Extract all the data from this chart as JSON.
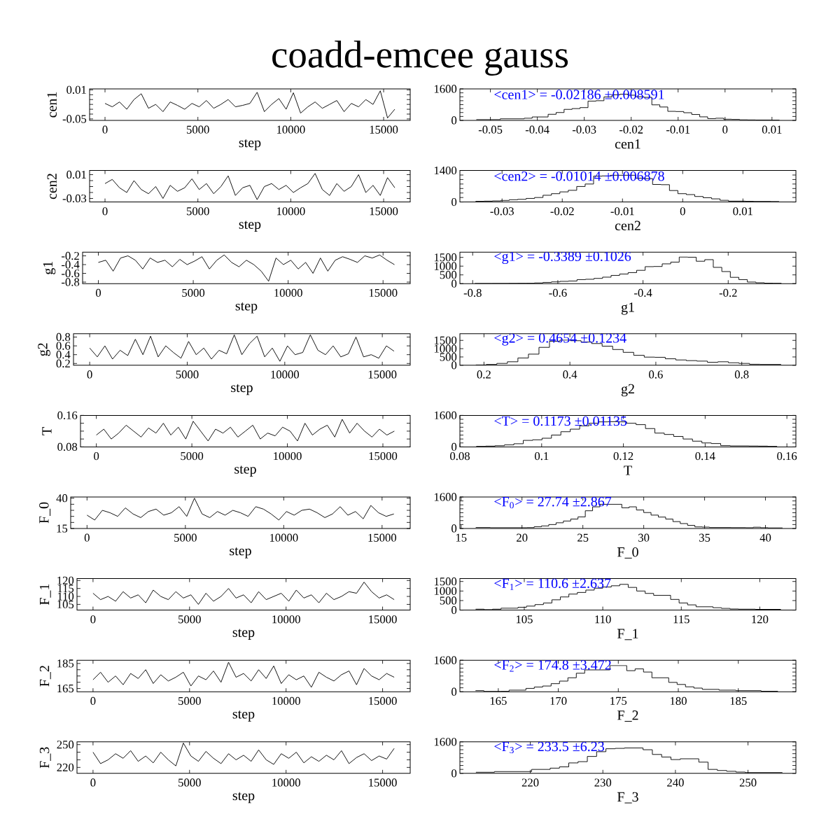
{
  "chart_data": [
    {
      "type": "line",
      "title": "coadd-emcee gauss",
      "xlabel": "step",
      "ylabel": "cen1",
      "color": "#000000",
      "xlim": [
        -830,
        16430
      ],
      "ylim": [
        -0.053,
        0.012
      ],
      "xticks": [
        0,
        5000,
        10000,
        15000
      ],
      "yticks": [
        -0.05,
        {
          "value": -0.04,
          "label": null
        },
        {
          "value": -0.03,
          "label": null
        },
        {
          "value": -0.02,
          "label": null
        },
        {
          "value": -0.01,
          "label": null
        },
        {
          "value": 0,
          "label": null
        },
        0.01
      ],
      "x": [
        0,
        390,
        780,
        1170,
        1560,
        1950,
        2340,
        2730,
        3120,
        3510,
        3900,
        4290,
        4680,
        5070,
        5460,
        5850,
        6240,
        6630,
        7020,
        7410,
        7800,
        8190,
        8580,
        8970,
        9360,
        9750,
        10140,
        10530,
        10920,
        11310,
        11700,
        12090,
        12480,
        12870,
        13260,
        13650,
        14040,
        14430,
        14820,
        15210,
        15600
      ],
      "values": [
        -0.018,
        -0.025,
        -0.015,
        -0.03,
        -0.01,
        0.002,
        -0.028,
        -0.02,
        -0.035,
        -0.015,
        -0.022,
        -0.03,
        -0.018,
        -0.025,
        -0.012,
        -0.028,
        -0.02,
        -0.01,
        -0.025,
        -0.022,
        -0.018,
        0.005,
        -0.035,
        -0.02,
        -0.008,
        -0.03,
        0.004,
        -0.038,
        -0.025,
        -0.015,
        -0.028,
        -0.02,
        -0.012,
        -0.035,
        -0.018,
        -0.025,
        -0.01,
        -0.02,
        0.008,
        -0.048,
        -0.03
      ]
    },
    {
      "type": "histogram",
      "xlabel": "cen1",
      "color": "#000000",
      "xlim": [
        -0.0565,
        0.0151
      ],
      "ylim": [
        0,
        1600
      ],
      "xticks": [
        -0.05,
        -0.04,
        -0.03,
        -0.02,
        -0.01,
        0,
        0.01
      ],
      "yticks": [
        0,
        {
          "value": 200,
          "label": null
        },
        {
          "value": 400,
          "label": null
        },
        {
          "value": 600,
          "label": null
        },
        {
          "value": 800,
          "label": null
        },
        {
          "value": 1000,
          "label": null
        },
        {
          "value": 1200,
          "label": null
        },
        {
          "value": 1400,
          "label": null
        },
        1600
      ],
      "annotations": [
        "<cen1> = -0.02186 ±0.008591"
      ],
      "bins": [
        -0.053,
        -0.0513,
        -0.0496,
        -0.0479,
        -0.0462,
        -0.0445,
        -0.0428,
        -0.0411,
        -0.0394,
        -0.0377,
        -0.036,
        -0.0343,
        -0.0326,
        -0.0309,
        -0.0292,
        -0.0275,
        -0.0258,
        -0.0241,
        -0.0224,
        -0.0207,
        -0.019,
        -0.0173,
        -0.0156,
        -0.0139,
        -0.0122,
        -0.0105,
        -0.0088,
        -0.0071,
        -0.0054,
        -0.0037,
        -0.002,
        -0.0003,
        0.0014,
        0.0031,
        0.0048,
        0.0065,
        0.0082,
        0.0099,
        0.0116
      ],
      "values": [
        40,
        40,
        40,
        80,
        80,
        80,
        110,
        175,
        175,
        310,
        400,
        560,
        600,
        650,
        980,
        1000,
        1190,
        1300,
        1330,
        1280,
        1200,
        1170,
        790,
        680,
        460,
        450,
        390,
        300,
        180,
        90,
        110,
        60,
        50,
        30,
        25,
        20,
        20,
        15
      ]
    },
    {
      "type": "line",
      "xlabel": "step",
      "ylabel": "cen2",
      "color": "#000000",
      "xlim": [
        -830,
        16430
      ],
      "ylim": [
        -0.036,
        0.017
      ],
      "xticks": [
        0,
        5000,
        10000,
        15000
      ],
      "yticks": [
        -0.03,
        {
          "value": -0.02,
          "label": null
        },
        {
          "value": -0.01,
          "label": null
        },
        {
          "value": 0,
          "label": null
        },
        0.01
      ],
      "x": [
        0,
        390,
        780,
        1170,
        1560,
        1950,
        2340,
        2730,
        3120,
        3510,
        3900,
        4290,
        4680,
        5070,
        5460,
        5850,
        6240,
        6630,
        7020,
        7410,
        7800,
        8190,
        8580,
        8970,
        9360,
        9750,
        10140,
        10530,
        10920,
        11310,
        11700,
        12090,
        12480,
        12870,
        13260,
        13650,
        14040,
        14430,
        14820,
        15210,
        15600
      ],
      "values": [
        -0.005,
        0.002,
        -0.012,
        -0.02,
        0,
        -0.015,
        -0.022,
        -0.01,
        -0.03,
        -0.008,
        -0.018,
        -0.012,
        0.003,
        -0.015,
        -0.005,
        -0.022,
        -0.01,
        0.008,
        -0.025,
        -0.012,
        -0.008,
        -0.032,
        -0.01,
        -0.005,
        -0.015,
        -0.008,
        -0.02,
        -0.012,
        -0.005,
        0.012,
        -0.015,
        -0.025,
        -0.005,
        -0.018,
        -0.01,
        0.01,
        -0.02,
        -0.008,
        -0.025,
        0.005,
        -0.012
      ]
    },
    {
      "type": "histogram",
      "xlabel": "cen2",
      "color": "#000000",
      "xlim": [
        -0.037,
        0.0188
      ],
      "ylim": [
        0,
        1400
      ],
      "xticks": [
        -0.03,
        -0.02,
        -0.01,
        0,
        0.01
      ],
      "yticks": [
        0,
        {
          "value": 200,
          "label": null
        },
        {
          "value": 400,
          "label": null
        },
        {
          "value": 600,
          "label": null
        },
        {
          "value": 800,
          "label": null
        },
        {
          "value": 1000,
          "label": null
        },
        {
          "value": 1200,
          "label": null
        },
        1400
      ],
      "annotations": [
        "<cen2> = -0.01014 ±0.006878"
      ],
      "bins": [
        -0.0344,
        -0.033,
        -0.0316,
        -0.0302,
        -0.0288,
        -0.0274,
        -0.026,
        -0.0246,
        -0.0232,
        -0.0218,
        -0.0204,
        -0.019,
        -0.0176,
        -0.0162,
        -0.0148,
        -0.0134,
        -0.012,
        -0.0106,
        -0.0092,
        -0.0078,
        -0.0064,
        -0.005,
        -0.0036,
        -0.0022,
        -0.0008,
        0.0006,
        0.002,
        0.0034,
        0.0048,
        0.0062,
        0.0076,
        0.009,
        0.0104,
        0.0118,
        0.0132,
        0.0146,
        0.016
      ],
      "values": [
        30,
        40,
        50,
        70,
        100,
        120,
        160,
        200,
        300,
        370,
        450,
        520,
        690,
        800,
        1150,
        1160,
        1190,
        1190,
        1190,
        1060,
        1040,
        780,
        770,
        510,
        370,
        330,
        245,
        190,
        140,
        75,
        40,
        40,
        30,
        25,
        25,
        20
      ]
    },
    {
      "type": "line",
      "xlabel": "step",
      "ylabel": "g1",
      "color": "#000000",
      "xlim": [
        -830,
        16430
      ],
      "ylim": [
        -0.835,
        -0.115
      ],
      "xticks": [
        0,
        5000,
        10000,
        15000
      ],
      "yticks": [
        -0.8,
        -0.6,
        -0.4,
        -0.2
      ],
      "x": [
        0,
        390,
        780,
        1170,
        1560,
        1950,
        2340,
        2730,
        3120,
        3510,
        3900,
        4290,
        4680,
        5070,
        5460,
        5850,
        6240,
        6630,
        7020,
        7410,
        7800,
        8190,
        8580,
        8970,
        9360,
        9750,
        10140,
        10530,
        10920,
        11310,
        11700,
        12090,
        12480,
        12870,
        13260,
        13650,
        14040,
        14430,
        14820,
        15210,
        15600
      ],
      "values": [
        -0.35,
        -0.3,
        -0.55,
        -0.25,
        -0.2,
        -0.3,
        -0.5,
        -0.25,
        -0.35,
        -0.3,
        -0.45,
        -0.28,
        -0.4,
        -0.32,
        -0.22,
        -0.5,
        -0.3,
        -0.18,
        -0.35,
        -0.45,
        -0.3,
        -0.4,
        -0.55,
        -0.78,
        -0.25,
        -0.4,
        -0.3,
        -0.5,
        -0.35,
        -0.6,
        -0.25,
        -0.55,
        -0.3,
        -0.22,
        -0.28,
        -0.35,
        -0.2,
        -0.25,
        -0.18,
        -0.3,
        -0.4
      ]
    },
    {
      "type": "histogram",
      "xlabel": "g1",
      "color": "#000000",
      "xlim": [
        -0.83,
        -0.041
      ],
      "ylim": [
        0,
        1800
      ],
      "xticks": [
        -0.8,
        -0.6,
        -0.4,
        -0.2
      ],
      "yticks": [
        0,
        500,
        1000,
        1500
      ],
      "annotations": [
        "<g1> = -0.3389 ±0.1026"
      ],
      "bins": [
        -0.795,
        -0.775,
        -0.755,
        -0.735,
        -0.715,
        -0.695,
        -0.675,
        -0.655,
        -0.635,
        -0.615,
        -0.595,
        -0.575,
        -0.555,
        -0.535,
        -0.515,
        -0.495,
        -0.475,
        -0.455,
        -0.435,
        -0.415,
        -0.395,
        -0.375,
        -0.355,
        -0.335,
        -0.315,
        -0.295,
        -0.275,
        -0.255,
        -0.235,
        -0.215,
        -0.195,
        -0.175,
        -0.155,
        -0.135,
        -0.115,
        -0.095,
        -0.075
      ],
      "values": [
        10,
        10,
        12,
        12,
        15,
        18,
        20,
        40,
        70,
        100,
        130,
        150,
        230,
        250,
        300,
        370,
        470,
        550,
        630,
        760,
        970,
        980,
        1130,
        1230,
        1520,
        1510,
        1280,
        1370,
        930,
        690,
        360,
        230,
        90,
        50,
        25,
        20
      ]
    },
    {
      "type": "line",
      "xlabel": "step",
      "ylabel": "g2",
      "color": "#000000",
      "xlim": [
        -830,
        16430
      ],
      "ylim": [
        0.16,
        0.875
      ],
      "xticks": [
        0,
        5000,
        10000,
        15000
      ],
      "yticks": [
        0.2,
        0.4,
        0.6,
        0.8
      ],
      "x": [
        0,
        390,
        780,
        1170,
        1560,
        1950,
        2340,
        2730,
        3120,
        3510,
        3900,
        4290,
        4680,
        5070,
        5460,
        5850,
        6240,
        6630,
        7020,
        7410,
        7800,
        8190,
        8580,
        8970,
        9360,
        9750,
        10140,
        10530,
        10920,
        11310,
        11700,
        12090,
        12480,
        12870,
        13260,
        13650,
        14040,
        14430,
        14820,
        15210,
        15600
      ],
      "values": [
        0.55,
        0.35,
        0.6,
        0.3,
        0.5,
        0.38,
        0.75,
        0.4,
        0.82,
        0.35,
        0.6,
        0.45,
        0.32,
        0.7,
        0.4,
        0.55,
        0.3,
        0.5,
        0.42,
        0.85,
        0.4,
        0.65,
        0.82,
        0.35,
        0.55,
        0.25,
        0.6,
        0.4,
        0.45,
        0.85,
        0.5,
        0.4,
        0.6,
        0.35,
        0.42,
        0.8,
        0.35,
        0.4,
        0.32,
        0.6,
        0.48
      ]
    },
    {
      "type": "histogram",
      "xlabel": "g2",
      "color": "#000000",
      "xlim": [
        0.144,
        0.926
      ],
      "ylim": [
        0,
        1900
      ],
      "xticks": [
        0.2,
        0.4,
        0.6,
        0.8
      ],
      "yticks": [
        0,
        500,
        1000,
        1500
      ],
      "annotations": [
        "<g2> = 0.4654 ±0.1234"
      ],
      "bins": [
        0.181,
        0.2055,
        0.23,
        0.2545,
        0.279,
        0.3035,
        0.328,
        0.3525,
        0.377,
        0.4015,
        0.426,
        0.4505,
        0.475,
        0.4995,
        0.524,
        0.5485,
        0.573,
        0.5975,
        0.622,
        0.6465,
        0.671,
        0.6955,
        0.72,
        0.7445,
        0.769,
        0.7935,
        0.818,
        0.8425,
        0.867,
        0.8915
      ],
      "values": [
        20,
        50,
        110,
        210,
        440,
        670,
        1080,
        1450,
        1520,
        1480,
        1400,
        1310,
        1150,
        950,
        780,
        600,
        490,
        480,
        390,
        320,
        280,
        250,
        180,
        210,
        150,
        110,
        60,
        50,
        50
      ]
    },
    {
      "type": "line",
      "xlabel": "step",
      "ylabel": "T",
      "color": "#000000",
      "xlim": [
        -830,
        16430
      ],
      "ylim": [
        0.08,
        0.16
      ],
      "xticks": [
        0,
        5000,
        10000,
        15000
      ],
      "yticks": [
        0.08,
        {
          "value": 0.1,
          "label": null
        },
        {
          "value": 0.12,
          "label": null
        },
        {
          "value": 0.14,
          "label": null
        },
        0.16
      ],
      "x": [
        0,
        390,
        780,
        1170,
        1560,
        1950,
        2340,
        2730,
        3120,
        3510,
        3900,
        4290,
        4680,
        5070,
        5460,
        5850,
        6240,
        6630,
        7020,
        7410,
        7800,
        8190,
        8580,
        8970,
        9360,
        9750,
        10140,
        10530,
        10920,
        11310,
        11700,
        12090,
        12480,
        12870,
        13260,
        13650,
        14040,
        14430,
        14820,
        15210,
        15600
      ],
      "values": [
        0.11,
        0.125,
        0.1,
        0.115,
        0.135,
        0.12,
        0.105,
        0.128,
        0.115,
        0.14,
        0.11,
        0.13,
        0.1,
        0.145,
        0.12,
        0.095,
        0.125,
        0.115,
        0.13,
        0.105,
        0.12,
        0.135,
        0.1,
        0.115,
        0.108,
        0.13,
        0.12,
        0.095,
        0.14,
        0.11,
        0.125,
        0.135,
        0.105,
        0.15,
        0.115,
        0.14,
        0.12,
        0.105,
        0.125,
        0.11,
        0.12
      ]
    },
    {
      "type": "histogram",
      "xlabel": "T",
      "color": "#000000",
      "xlim": [
        0.08,
        0.1622
      ],
      "ylim": [
        0,
        1600
      ],
      "xticks": [
        0.08,
        0.1,
        0.12,
        0.14,
        0.16
      ],
      "yticks": [
        0,
        {
          "value": 200,
          "label": null
        },
        {
          "value": 400,
          "label": null
        },
        {
          "value": 600,
          "label": null
        },
        {
          "value": 800,
          "label": null
        },
        {
          "value": 1000,
          "label": null
        },
        {
          "value": 1200,
          "label": null
        },
        {
          "value": 1400,
          "label": null
        },
        1600
      ],
      "annotations": [
        "<T> = 0.1173 ±0.01135"
      ],
      "bins": [
        0.084,
        0.0863,
        0.0886,
        0.0909,
        0.0932,
        0.0955,
        0.0978,
        0.1001,
        0.1024,
        0.1047,
        0.107,
        0.1093,
        0.1116,
        0.1139,
        0.1162,
        0.1185,
        0.1208,
        0.1231,
        0.1254,
        0.1277,
        0.13,
        0.1323,
        0.1346,
        0.1369,
        0.1392,
        0.1415,
        0.1438,
        0.1461,
        0.1484,
        0.1507,
        0.153,
        0.1553,
        0.1576
      ],
      "values": [
        25,
        40,
        60,
        100,
        160,
        330,
        360,
        440,
        600,
        770,
        900,
        1070,
        1200,
        1270,
        1280,
        1270,
        1200,
        1130,
        930,
        700,
        630,
        530,
        400,
        290,
        200,
        170,
        65,
        50,
        50,
        45,
        40,
        25
      ]
    },
    {
      "type": "line",
      "xlabel": "step",
      "ylabel": "F_0",
      "color": "#000000",
      "xlim": [
        -830,
        16430
      ],
      "ylim": [
        15,
        41
      ],
      "xticks": [
        0,
        5000,
        10000,
        15000
      ],
      "yticks": [
        15,
        {
          "value": 20,
          "label": null
        },
        {
          "value": 25,
          "label": null
        },
        {
          "value": 30,
          "label": null
        },
        {
          "value": 35,
          "label": null
        },
        40
      ],
      "x": [
        0,
        390,
        780,
        1170,
        1560,
        1950,
        2340,
        2730,
        3120,
        3510,
        3900,
        4290,
        4680,
        5070,
        5460,
        5850,
        6240,
        6630,
        7020,
        7410,
        7800,
        8190,
        8580,
        8970,
        9360,
        9750,
        10140,
        10530,
        10920,
        11310,
        11700,
        12090,
        12480,
        12870,
        13260,
        13650,
        14040,
        14430,
        14820,
        15210,
        15600
      ],
      "values": [
        26,
        22,
        30,
        28,
        25,
        32,
        27,
        24,
        29,
        31,
        26,
        28,
        33,
        25,
        40,
        27,
        24,
        29,
        26,
        30,
        28,
        25,
        33,
        31,
        27,
        22,
        29,
        26,
        30,
        31,
        28,
        24,
        27,
        33,
        26,
        29,
        23,
        34,
        28,
        25,
        27
      ]
    },
    {
      "type": "histogram",
      "xlabel": "F_0",
      "color": "#000000",
      "xlim": [
        14.9,
        42.5
      ],
      "ylim": [
        0,
        1600
      ],
      "xticks": [
        15,
        20,
        25,
        30,
        35,
        40
      ],
      "yticks": [
        0,
        {
          "value": 200,
          "label": null
        },
        {
          "value": 400,
          "label": null
        },
        {
          "value": 600,
          "label": null
        },
        {
          "value": 800,
          "label": null
        },
        {
          "value": 1000,
          "label": null
        },
        {
          "value": 1200,
          "label": null
        },
        {
          "value": 1400,
          "label": null
        },
        1600
      ],
      "annotations": [
        "<F$_{0}$> = 27.74 ±2.867"
      ],
      "bins": [
        16.2,
        16.8,
        17.4,
        18,
        18.6,
        19.2,
        19.8,
        20.4,
        21,
        21.6,
        22.2,
        22.8,
        23.4,
        24,
        24.6,
        25.2,
        25.8,
        26.4,
        27,
        27.6,
        28.2,
        28.8,
        29.4,
        30,
        30.6,
        31.2,
        31.8,
        32.4,
        33,
        33.6,
        34.2,
        34.8,
        35.4,
        36,
        36.6,
        37.2,
        37.8,
        38.4,
        39,
        39.6,
        40.2,
        40.8,
        41.4
      ],
      "values": [
        50,
        50,
        40,
        40,
        40,
        40,
        40,
        45,
        90,
        130,
        200,
        290,
        380,
        480,
        590,
        900,
        1100,
        1230,
        1230,
        1230,
        1050,
        1100,
        940,
        810,
        680,
        580,
        480,
        350,
        250,
        160,
        80,
        70,
        50,
        50,
        50,
        45,
        45,
        40,
        65,
        40,
        30,
        30
      ]
    },
    {
      "type": "line",
      "xlabel": "step",
      "ylabel": "F_1",
      "color": "#000000",
      "xlim": [
        -830,
        16430
      ],
      "ylim": [
        101.4,
        121.2
      ],
      "xticks": [
        0,
        5000,
        10000,
        15000
      ],
      "yticks": [
        105,
        110,
        115,
        120
      ],
      "x": [
        0,
        390,
        780,
        1170,
        1560,
        1950,
        2340,
        2730,
        3120,
        3510,
        3900,
        4290,
        4680,
        5070,
        5460,
        5850,
        6240,
        6630,
        7020,
        7410,
        7800,
        8190,
        8580,
        8970,
        9360,
        9750,
        10140,
        10530,
        10920,
        11310,
        11700,
        12090,
        12480,
        12870,
        13260,
        13650,
        14040,
        14430,
        14820,
        15210,
        15600
      ],
      "values": [
        112,
        108,
        110,
        107,
        113,
        109,
        111,
        106,
        114,
        110,
        108,
        113,
        109,
        111,
        105,
        112,
        107,
        110,
        115,
        109,
        111,
        106,
        113,
        108,
        110,
        112,
        107,
        114,
        109,
        111,
        106,
        112,
        108,
        110,
        113,
        112,
        119,
        113,
        109,
        111,
        108
      ]
    },
    {
      "type": "histogram",
      "xlabel": "F_1",
      "color": "#000000",
      "xlim": [
        100.9,
        122.3
      ],
      "ylim": [
        0,
        1650
      ],
      "xticks": [
        105,
        110,
        115,
        120
      ],
      "yticks": [
        0,
        500,
        1000,
        1500
      ],
      "annotations": [
        "<F$_{1}$> = 110.6 ±2.637"
      ],
      "bins": [
        101.9,
        102.44,
        102.98,
        103.52,
        104.06,
        104.6,
        105.14,
        105.68,
        106.22,
        106.76,
        107.3,
        107.84,
        108.38,
        108.92,
        109.46,
        110,
        110.54,
        111.08,
        111.62,
        112.16,
        112.7,
        113.24,
        113.78,
        114.32,
        114.86,
        115.4,
        115.94,
        116.48,
        117.02,
        117.56,
        118.1,
        118.64,
        119.18,
        119.72,
        120.26,
        120.8,
        121.34
      ],
      "values": [
        50,
        25,
        50,
        100,
        100,
        150,
        210,
        290,
        375,
        540,
        690,
        840,
        925,
        1050,
        1150,
        1210,
        1275,
        1350,
        1190,
        1000,
        875,
        775,
        775,
        560,
        375,
        275,
        175,
        175,
        125,
        90,
        60,
        50,
        50,
        40,
        40,
        40
      ]
    },
    {
      "type": "line",
      "xlabel": "step",
      "ylabel": "F_2",
      "color": "#000000",
      "xlim": [
        -830,
        16430
      ],
      "ylim": [
        162.4,
        187.6
      ],
      "xticks": [
        0,
        5000,
        10000,
        15000
      ],
      "yticks": [
        165,
        {
          "value": 170,
          "label": null
        },
        {
          "value": 175,
          "label": null
        },
        {
          "value": 180,
          "label": null
        },
        185
      ],
      "x": [
        0,
        390,
        780,
        1170,
        1560,
        1950,
        2340,
        2730,
        3120,
        3510,
        3900,
        4290,
        4680,
        5070,
        5460,
        5850,
        6240,
        6630,
        7020,
        7410,
        7800,
        8190,
        8580,
        8970,
        9360,
        9750,
        10140,
        10530,
        10920,
        11310,
        11700,
        12090,
        12480,
        12870,
        13260,
        13650,
        14040,
        14430,
        14820,
        15210,
        15600
      ],
      "values": [
        172,
        178,
        170,
        175,
        168,
        177,
        173,
        180,
        169,
        176,
        171,
        174,
        178,
        167,
        175,
        172,
        179,
        170,
        186,
        174,
        177,
        171,
        180,
        173,
        183,
        169,
        176,
        172,
        175,
        166,
        178,
        174,
        171,
        176,
        179,
        168,
        181,
        175,
        172,
        177,
        174
      ]
    },
    {
      "type": "histogram",
      "xlabel": "F_2",
      "color": "#000000",
      "xlim": [
        161.8,
        189.8
      ],
      "ylim": [
        0,
        1600
      ],
      "xticks": [
        165,
        170,
        175,
        180,
        185
      ],
      "yticks": [
        0,
        {
          "value": 200,
          "label": null
        },
        {
          "value": 400,
          "label": null
        },
        {
          "value": 600,
          "label": null
        },
        {
          "value": 800,
          "label": null
        },
        {
          "value": 1000,
          "label": null
        },
        {
          "value": 1200,
          "label": null
        },
        {
          "value": 1400,
          "label": null
        },
        1600
      ],
      "annotations": [
        "<F$_{2}$> = 174.8 ±3.472"
      ],
      "bins": [
        163.1,
        163.8,
        164.5,
        165.2,
        165.9,
        166.6,
        167.3,
        168,
        168.7,
        169.4,
        170.1,
        170.8,
        171.5,
        172.2,
        172.9,
        173.6,
        174.3,
        175,
        175.7,
        176.4,
        177.1,
        177.8,
        178.5,
        179.2,
        179.9,
        180.6,
        181.3,
        182,
        182.7,
        183.4,
        184.1,
        184.8,
        185.5,
        186.2,
        186.9,
        187.6,
        188.3
      ],
      "values": [
        55,
        15,
        15,
        20,
        80,
        80,
        170,
        240,
        290,
        410,
        540,
        710,
        940,
        1110,
        1110,
        1110,
        1330,
        1330,
        1070,
        1160,
        1000,
        710,
        710,
        475,
        370,
        250,
        185,
        120,
        120,
        80,
        80,
        55,
        55,
        55,
        25,
        25
      ]
    },
    {
      "type": "line",
      "xlabel": "step",
      "ylabel": "F_3",
      "color": "#000000",
      "xlim": [
        -830,
        16430
      ],
      "ylim": [
        212.2,
        253.6
      ],
      "xticks": [
        0,
        5000,
        10000,
        15000
      ],
      "yticks": [
        220,
        {
          "value": 230,
          "label": null
        },
        {
          "value": 240,
          "label": null
        },
        250
      ],
      "x": [
        0,
        390,
        780,
        1170,
        1560,
        1950,
        2340,
        2730,
        3120,
        3510,
        3900,
        4290,
        4680,
        5070,
        5460,
        5850,
        6240,
        6630,
        7020,
        7410,
        7800,
        8190,
        8580,
        8970,
        9360,
        9750,
        10140,
        10530,
        10920,
        11310,
        11700,
        12090,
        12480,
        12870,
        13260,
        13650,
        14040,
        14430,
        14820,
        15210,
        15600
      ],
      "values": [
        240,
        225,
        230,
        238,
        232,
        242,
        228,
        235,
        226,
        240,
        230,
        222,
        252,
        235,
        228,
        241,
        232,
        225,
        238,
        230,
        236,
        228,
        243,
        230,
        224,
        238,
        232,
        240,
        226,
        234,
        228,
        236,
        230,
        242,
        225,
        233,
        238,
        229,
        235,
        231,
        245
      ]
    },
    {
      "type": "histogram",
      "xlabel": "F_3",
      "color": "#000000",
      "xlim": [
        210.3,
        256.6
      ],
      "ylim": [
        0,
        1600
      ],
      "xticks": [
        220,
        230,
        240,
        250
      ],
      "yticks": [
        0,
        {
          "value": 200,
          "label": null
        },
        {
          "value": 400,
          "label": null
        },
        {
          "value": 600,
          "label": null
        },
        {
          "value": 800,
          "label": null
        },
        {
          "value": 1000,
          "label": null
        },
        {
          "value": 1200,
          "label": null
        },
        {
          "value": 1400,
          "label": null
        },
        1600
      ],
      "annotations": [
        "<F$_{3}$> = 233.5 ±6.23"
      ],
      "bins": [
        212.5,
        213.78,
        215.06,
        216.34,
        217.62,
        218.9,
        220.18,
        221.46,
        222.74,
        224.02,
        225.3,
        226.58,
        227.86,
        229.14,
        230.42,
        231.7,
        232.98,
        234.26,
        235.54,
        236.82,
        238.1,
        239.38,
        240.66,
        241.94,
        243.22,
        244.5,
        245.78,
        247.06,
        248.34,
        249.62,
        250.9,
        252.18,
        253.46,
        254.74
      ],
      "values": [
        55,
        55,
        90,
        90,
        90,
        90,
        200,
        200,
        265,
        330,
        530,
        595,
        860,
        1100,
        1250,
        1270,
        1290,
        1290,
        1200,
        960,
        830,
        700,
        740,
        740,
        570,
        200,
        145,
        105,
        65,
        40,
        40,
        40,
        40
      ]
    }
  ]
}
